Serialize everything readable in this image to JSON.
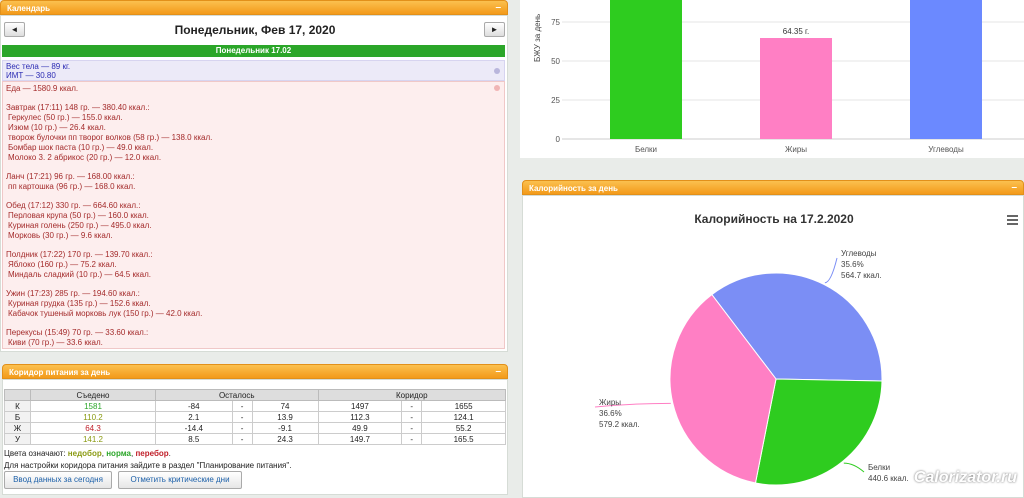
{
  "calendar": {
    "header": "Календарь",
    "prev": "◄",
    "next": "►",
    "date_title": "Понедельник, Фев 17, 2020",
    "day_bar": "Понедельник 17.02",
    "weight": "Вес тела — 89 кг.",
    "bmi": "ИМТ — 30.80",
    "food_total": "Еда — 1580.9 ккал.",
    "meals": [
      {
        "title": "Завтрак (17:11) 148 гр. — 380.40 ккал.:",
        "items": [
          "Геркулес (50 гр.) — 155.0 ккал.",
          "Изюм (10 гр.) — 26.4 ккал.",
          "творож булочки пп творог волков (58 гр.) — 138.0 ккал.",
          "Бомбар шок паста (10 гр.) — 49.0 ккал.",
          "Молоко 3. 2 абрикос (20 гр.) — 12.0 ккал."
        ]
      },
      {
        "title": "Ланч (17:21) 96 гр. — 168.00 ккал.:",
        "items": [
          "пп картошка (96 гр.) — 168.0 ккал."
        ]
      },
      {
        "title": "Обед (17:12) 330 гр. — 664.60 ккал.:",
        "items": [
          "Перловая крупа (50 гр.) — 160.0 ккал.",
          "Куриная голень (250 гр.) — 495.0 ккал.",
          "Морковь (30 гр.) — 9.6 ккал."
        ]
      },
      {
        "title": "Полдник (17:22) 170 гр. — 139.70 ккал.:",
        "items": [
          "Яблоко (160 гр.) — 75.2 ккал.",
          "Миндаль сладкий (10 гр.) — 64.5 ккал."
        ]
      },
      {
        "title": "Ужин (17:23) 285 гр. — 194.60 ккал.:",
        "items": [
          "Куриная грудка (135 гр.) — 152.6 ккал.",
          "Кабачок тушеный морковь лук (150 гр.) — 42.0 ккал."
        ]
      },
      {
        "title": "Перекусы (15:49) 70 гр. — 33.60 ккал.:",
        "items": [
          "Киви (70 гр.) — 33.6 ккал."
        ]
      }
    ]
  },
  "corridor": {
    "header": "Коридор питания за день",
    "cols": [
      "Съедено",
      "Осталось",
      "Коридор"
    ],
    "rows": [
      {
        "k": "К",
        "eaten": "1581",
        "color": "#2ba629",
        "r1": "-84",
        "r2": "74",
        "c1": "1497",
        "c2": "1655"
      },
      {
        "k": "Б",
        "eaten": "110.2",
        "color": "#8a9a12",
        "r1": "2.1",
        "r2": "13.9",
        "c1": "112.3",
        "c2": "124.1"
      },
      {
        "k": "Ж",
        "eaten": "64.3",
        "color": "#c0202a",
        "r1": "-14.4",
        "r2": "-9.1",
        "c1": "49.9",
        "c2": "55.2"
      },
      {
        "k": "У",
        "eaten": "141.2",
        "color": "#8a9a12",
        "r1": "8.5",
        "r2": "24.3",
        "c1": "149.7",
        "c2": "165.5"
      }
    ],
    "dash": "-",
    "legend_prefix": "Цвета означают:",
    "legend_under": "недобор",
    "legend_norm": "норма",
    "legend_over": "перебор",
    "hint": "Для настройки коридора питания зайдите в раздел \"Планирование питания\".",
    "btn_today": "Ввод данных за сегодня",
    "btn_critical": "Отметить критические дни"
  },
  "bju_chart": {
    "ylabel": "БЖУ за день",
    "ticks": [
      "75",
      "50",
      "25",
      "0"
    ],
    "categories": [
      "Белки",
      "Жиры",
      "Углеводы"
    ],
    "fat_label": "64.35 г.",
    "colors": [
      "#2ecc1f",
      "#ff7fc4",
      "#6b89ff"
    ]
  },
  "calorie_panel": {
    "header": "Калорийность за день",
    "title": "Калорийность на 17.2.2020",
    "watermark": "Calorizator.ru"
  },
  "chart_data": {
    "type": "pie",
    "title": "Калорийность на 17.2.2020",
    "slices": [
      {
        "name": "Углеводы",
        "percent": 35.6,
        "value": 564.7,
        "pct_label": "35.6%",
        "kcal_label": "564.7 ккал.",
        "color": "#7b8ef5"
      },
      {
        "name": "Белки",
        "percent": 27.8,
        "value": 440.6,
        "pct_label": "",
        "kcal_label": "440.6 ккал.",
        "color": "#2ecc1f"
      },
      {
        "name": "Жиры",
        "percent": 36.6,
        "value": 579.2,
        "pct_label": "36.6%",
        "kcal_label": "579.2 ккал.",
        "color": "#ff7fc4"
      }
    ]
  }
}
